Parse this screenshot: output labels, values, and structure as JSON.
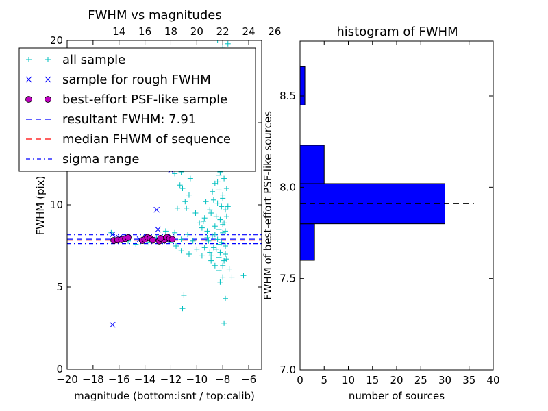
{
  "chart_data": [
    {
      "type": "scatter",
      "title": "FWHM vs magnitudes",
      "xlabel": "magnitude (bottom:isnt / top:calib)",
      "ylabel": "FWHM (pix)",
      "xlim": [
        -20,
        -5
      ],
      "ylim": [
        0,
        20
      ],
      "x_ticks": [
        -20,
        -18,
        -16,
        -14,
        -12,
        -10,
        -8,
        -6
      ],
      "x_tick_labels": [
        "−20",
        "−18",
        "−16",
        "−14",
        "−12",
        "−10",
        "−8",
        "−6"
      ],
      "y_ticks": [
        0,
        5,
        10,
        15,
        20
      ],
      "y_tick_labels": [
        "0",
        "5",
        "10",
        "15",
        "20"
      ],
      "top_axis": {
        "offset": 30,
        "ticks": [
          14,
          16,
          18,
          20,
          22,
          24,
          26
        ],
        "tick_labels": [
          "14",
          "16",
          "18",
          "20",
          "22",
          "24",
          "26"
        ]
      },
      "legend": {
        "position": "upper-left",
        "entries": [
          {
            "label": "all sample",
            "marker": "plus",
            "color": "#00bfbf"
          },
          {
            "label": "sample for rough FWHM",
            "marker": "x",
            "color": "#0000ff"
          },
          {
            "label": "best-effort PSF-like sample",
            "marker": "circle",
            "color": "#bf00bf"
          },
          {
            "label": "resultant FWHM: 7.91",
            "line": "dashed",
            "color": "#0000ff"
          },
          {
            "label": "median FHWM of sequence",
            "line": "dashed",
            "color": "#ff0000"
          },
          {
            "label": "sigma range",
            "line": "dashdot",
            "color": "#0000ff"
          }
        ]
      },
      "hlines": [
        {
          "y": 7.91,
          "style": "dashed",
          "color": "#0000ff"
        },
        {
          "y": 7.85,
          "style": "dashed",
          "color": "#ff0000"
        },
        {
          "y": 8.18,
          "style": "dashdot",
          "color": "#0000ff"
        },
        {
          "y": 7.64,
          "style": "dashdot",
          "color": "#0000ff"
        }
      ],
      "series": [
        {
          "name": "all sample",
          "marker": "plus",
          "color": "#00bfbf",
          "points": [
            [
              -8.4,
              20.0
            ],
            [
              -8.0,
              19.6
            ],
            [
              -7.6,
              19.8
            ],
            [
              -12.0,
              12.3
            ],
            [
              -11.2,
              12.0
            ],
            [
              -10.5,
              11.6
            ],
            [
              -11.7,
              11.9
            ],
            [
              -11.1,
              11.0
            ],
            [
              -11.3,
              11.2
            ],
            [
              -11.5,
              9.8
            ],
            [
              -10.9,
              10.2
            ],
            [
              -10.6,
              10.6
            ],
            [
              -10.8,
              9.8
            ],
            [
              -10.1,
              9.5
            ],
            [
              -9.8,
              8.9
            ],
            [
              -9.4,
              9.2
            ],
            [
              -9.6,
              8.6
            ],
            [
              -9.2,
              8.0
            ],
            [
              -9.1,
              7.8
            ],
            [
              -9.4,
              7.4
            ],
            [
              -10.3,
              7.8
            ],
            [
              -10.7,
              8.2
            ],
            [
              -11.2,
              7.9
            ],
            [
              -11.7,
              8.3
            ],
            [
              -12.4,
              8.4
            ],
            [
              -13.1,
              8.0
            ],
            [
              -13.7,
              7.7
            ],
            [
              -14.7,
              7.6
            ],
            [
              -15.3,
              7.8
            ],
            [
              -16.6,
              8.3
            ],
            [
              -12.0,
              7.7
            ],
            [
              -11.6,
              7.5
            ],
            [
              -11.2,
              7.2
            ],
            [
              -10.6,
              7.0
            ],
            [
              -10.0,
              7.3
            ],
            [
              -9.6,
              6.9
            ],
            [
              -9.0,
              7.1
            ],
            [
              -11.0,
              4.5
            ],
            [
              -11.1,
              3.7
            ],
            [
              -7.9,
              2.8
            ],
            [
              -7.8,
              4.3
            ],
            [
              -7.3,
              5.6
            ],
            [
              -6.4,
              5.7
            ],
            [
              -7.5,
              6.1
            ],
            [
              -8.0,
              5.6
            ],
            [
              -8.2,
              5.3
            ],
            [
              -8.6,
              6.3
            ],
            [
              -8.9,
              6.6
            ],
            [
              -7.7,
              6.7
            ],
            [
              -8.3,
              6.0
            ],
            [
              -7.9,
              6.6
            ],
            [
              -7.8,
              7.0
            ],
            [
              -9.1,
              13.8
            ],
            [
              -8.9,
              13.3
            ],
            [
              -8.5,
              12.5
            ],
            [
              -8.2,
              12.0
            ],
            [
              -7.9,
              11.6
            ],
            [
              -8.6,
              11.3
            ],
            [
              -8.3,
              10.9
            ],
            [
              -8.0,
              10.6
            ],
            [
              -8.7,
              10.3
            ],
            [
              -8.4,
              10.1
            ],
            [
              -8.1,
              9.9
            ],
            [
              -7.8,
              9.7
            ],
            [
              -8.9,
              9.5
            ],
            [
              -8.5,
              9.3
            ],
            [
              -8.2,
              9.1
            ],
            [
              -7.9,
              8.9
            ],
            [
              -8.6,
              8.7
            ],
            [
              -8.3,
              8.5
            ],
            [
              -8.0,
              8.3
            ],
            [
              -8.8,
              8.1
            ],
            [
              -8.4,
              7.9
            ],
            [
              -8.1,
              7.7
            ],
            [
              -7.8,
              7.5
            ],
            [
              -8.5,
              7.3
            ],
            [
              -8.2,
              7.1
            ],
            [
              -8.9,
              6.9
            ],
            [
              -8.6,
              8.2
            ],
            [
              -8.3,
              7.6
            ],
            [
              -8.0,
              8.8
            ],
            [
              -7.7,
              9.3
            ],
            [
              -8.8,
              10.8
            ],
            [
              -8.4,
              11.4
            ],
            [
              -8.1,
              12.2
            ],
            [
              -7.8,
              12.9
            ],
            [
              -8.5,
              13.5
            ],
            [
              -8.2,
              14.0
            ],
            [
              -7.9,
              13.1
            ],
            [
              -8.7,
              12.7
            ],
            [
              -8.3,
              11.8
            ],
            [
              -8.0,
              10.4
            ],
            [
              -9.3,
              10.2
            ],
            [
              -9.0,
              9.7
            ],
            [
              -9.5,
              9.0
            ],
            [
              -9.2,
              8.4
            ],
            [
              -8.7,
              7.4
            ],
            [
              -8.3,
              6.8
            ],
            [
              -8.0,
              6.3
            ],
            [
              -7.8,
              8.4
            ],
            [
              -7.6,
              9.9
            ],
            [
              -7.7,
              11.0
            ]
          ]
        },
        {
          "name": "sample for rough FWHM",
          "marker": "x",
          "color": "#0000ff",
          "points": [
            [
              -16.5,
              8.2
            ],
            [
              -16.0,
              8.0
            ],
            [
              -15.3,
              8.0
            ],
            [
              -14.4,
              7.9
            ],
            [
              -13.9,
              8.0
            ],
            [
              -13.4,
              7.9
            ],
            [
              -12.9,
              7.8
            ],
            [
              -12.3,
              7.8
            ],
            [
              -13.0,
              8.5
            ],
            [
              -13.1,
              9.7
            ],
            [
              -12.0,
              12.1
            ],
            [
              -16.5,
              2.7
            ]
          ]
        },
        {
          "name": "best-effort PSF-like sample",
          "marker": "circle",
          "color": "#bf00bf",
          "points": [
            [
              -16.4,
              7.83
            ],
            [
              -16.1,
              7.86
            ],
            [
              -15.8,
              7.88
            ],
            [
              -15.5,
              7.94
            ],
            [
              -15.3,
              8.01
            ],
            [
              -14.2,
              7.83
            ],
            [
              -14.0,
              7.9
            ],
            [
              -13.8,
              8.02
            ],
            [
              -13.6,
              7.96
            ],
            [
              -13.4,
              7.85
            ],
            [
              -12.9,
              7.8
            ],
            [
              -12.7,
              7.92
            ],
            [
              -12.5,
              7.86
            ],
            [
              -12.3,
              8.02
            ],
            [
              -12.1,
              7.95
            ],
            [
              -11.9,
              7.9
            ],
            [
              -12.8,
              7.96
            ]
          ]
        }
      ]
    },
    {
      "type": "bar",
      "orientation": "horizontal",
      "title": "histogram of FWHM",
      "xlabel": "number of sources",
      "ylabel": "FWHM of best-effort PSF-like sources",
      "xlim": [
        0,
        40
      ],
      "ylim": [
        7.0,
        8.8
      ],
      "x_ticks": [
        0,
        5,
        10,
        15,
        20,
        25,
        30,
        35,
        40
      ],
      "x_tick_labels": [
        "0",
        "5",
        "10",
        "15",
        "20",
        "25",
        "30",
        "35",
        "40"
      ],
      "y_ticks": [
        7.0,
        7.5,
        8.0,
        8.5
      ],
      "y_tick_labels": [
        "7.0",
        "7.5",
        "8.0",
        "8.5"
      ],
      "bar_color": "#0000ff",
      "bins": [
        {
          "from": 7.6,
          "to": 7.8,
          "count": 3
        },
        {
          "from": 7.8,
          "to": 8.02,
          "count": 30
        },
        {
          "from": 8.02,
          "to": 8.23,
          "count": 5
        },
        {
          "from": 8.45,
          "to": 8.66,
          "count": 1
        }
      ],
      "hline": {
        "y": 7.91,
        "x_to": 36,
        "style": "dashed",
        "color": "#000000"
      }
    }
  ]
}
